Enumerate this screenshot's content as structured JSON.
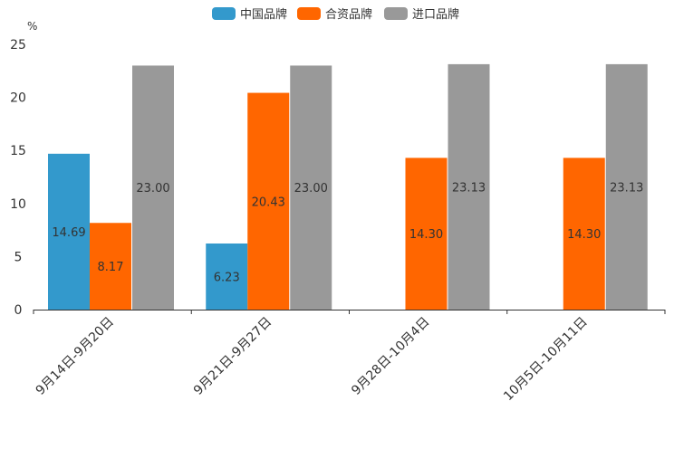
{
  "chart_data": {
    "type": "bar",
    "title": "",
    "xlabel": "",
    "ylabel": "%",
    "ylim": [
      0,
      25
    ],
    "yticks": [
      0,
      5,
      10,
      15,
      20,
      25
    ],
    "grid": false,
    "legend_position": "top-center",
    "categories": [
      "9月14日-9月20日",
      "9月21日-9月27日",
      "9月28日-10月4日",
      "10月5日-10月11日"
    ],
    "series": [
      {
        "name": "中国品牌",
        "color": "#3399cc",
        "values": [
          14.69,
          6.23,
          null,
          null
        ],
        "labels": [
          "14.69",
          "6.23",
          null,
          null
        ]
      },
      {
        "name": "合资品牌",
        "color": "#ff6600",
        "values": [
          8.17,
          20.43,
          14.3,
          14.3
        ],
        "labels": [
          "8.17",
          "20.43",
          "14.30",
          "14.30"
        ]
      },
      {
        "name": "进口品牌",
        "color": "#999999",
        "values": [
          23.0,
          23.0,
          23.13,
          23.13
        ],
        "labels": [
          "23.00",
          "23.00",
          "23.13",
          "23.13"
        ]
      }
    ]
  }
}
